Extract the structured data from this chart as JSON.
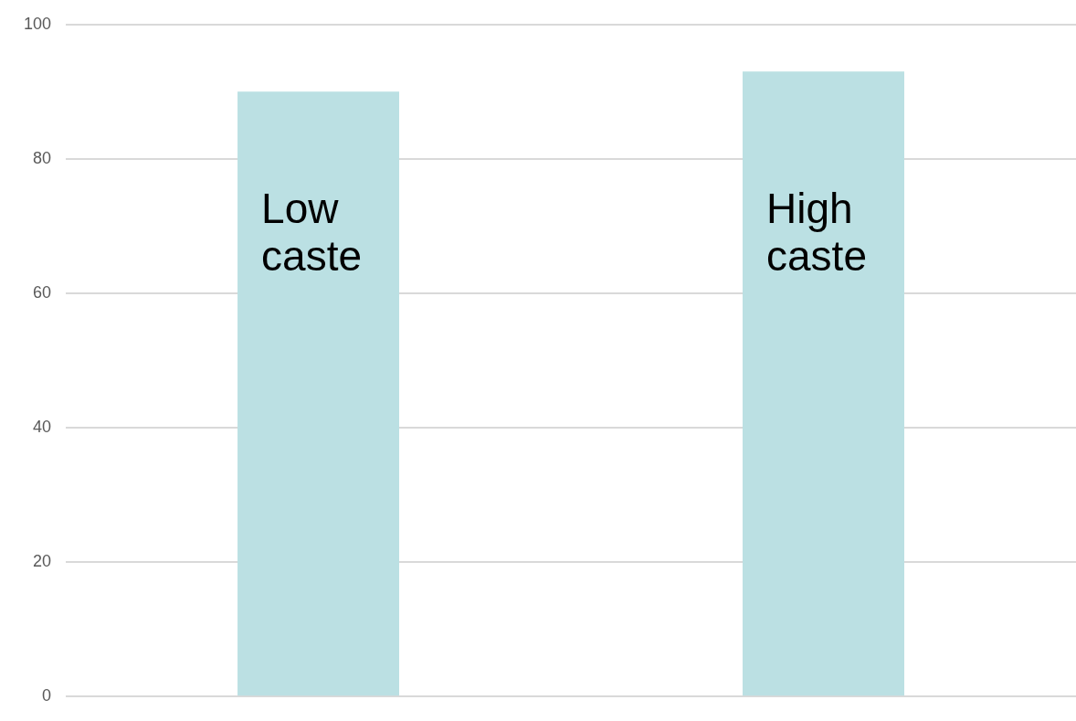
{
  "chart_data": {
    "type": "bar",
    "categories": [
      "Low caste",
      "High caste"
    ],
    "values": [
      90,
      93
    ],
    "color": "#bbe0e3",
    "ylim": [
      0,
      100
    ],
    "yticks": [
      0,
      20,
      40,
      60,
      80,
      100
    ],
    "grid": "y",
    "legend": false
  }
}
